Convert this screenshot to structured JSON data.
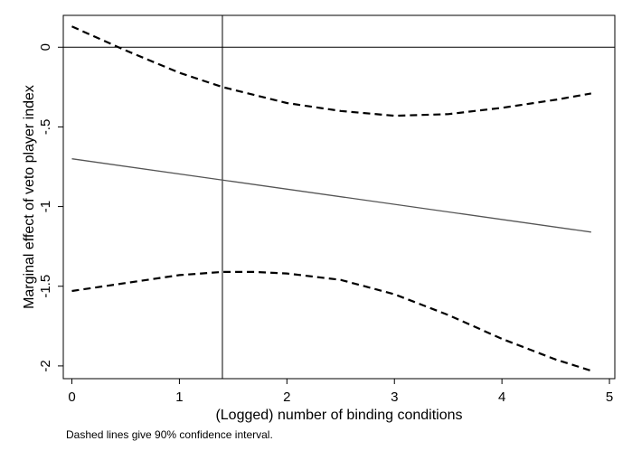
{
  "chart_data": {
    "type": "line",
    "xlabel": "(Logged) number of binding conditions",
    "ylabel": "Marginal effect of veto player index",
    "note": "Dashed lines give 90% confidence interval.",
    "xlim": [
      -0.08,
      5.05
    ],
    "ylim": [
      -2.08,
      0.2
    ],
    "x_ticks": [
      0,
      1,
      2,
      3,
      4,
      5
    ],
    "x_tick_labels": [
      "0",
      "1",
      "2",
      "3",
      "4",
      "5"
    ],
    "y_ticks": [
      0,
      -0.5,
      -1,
      -1.5,
      -2
    ],
    "y_tick_labels": [
      "0",
      "-.5",
      "-1",
      "-1.5",
      "-2"
    ],
    "reference_lines": {
      "y": 0,
      "x": 1.4
    },
    "grid": false,
    "legend": "none",
    "series": [
      {
        "role": "estimate",
        "style": "solid",
        "color": "#555555",
        "x": [
          0,
          4.83
        ],
        "y": [
          -0.7,
          -1.16
        ]
      },
      {
        "role": "upper-bound",
        "style": "dashed",
        "color": "#000000",
        "x": [
          0,
          0.5,
          1.0,
          1.4,
          2.0,
          2.5,
          3.0,
          3.5,
          4.0,
          4.5,
          4.83
        ],
        "y": [
          0.13,
          -0.02,
          -0.16,
          -0.25,
          -0.35,
          -0.4,
          -0.43,
          -0.42,
          -0.38,
          -0.33,
          -0.29
        ]
      },
      {
        "role": "lower-bound",
        "style": "dashed",
        "color": "#000000",
        "x": [
          0,
          0.5,
          1.0,
          1.4,
          1.7,
          2.0,
          2.5,
          3.0,
          3.5,
          4.0,
          4.5,
          4.83
        ],
        "y": [
          -1.53,
          -1.48,
          -1.43,
          -1.41,
          -1.41,
          -1.42,
          -1.46,
          -1.55,
          -1.68,
          -1.83,
          -1.96,
          -2.03
        ]
      }
    ]
  }
}
